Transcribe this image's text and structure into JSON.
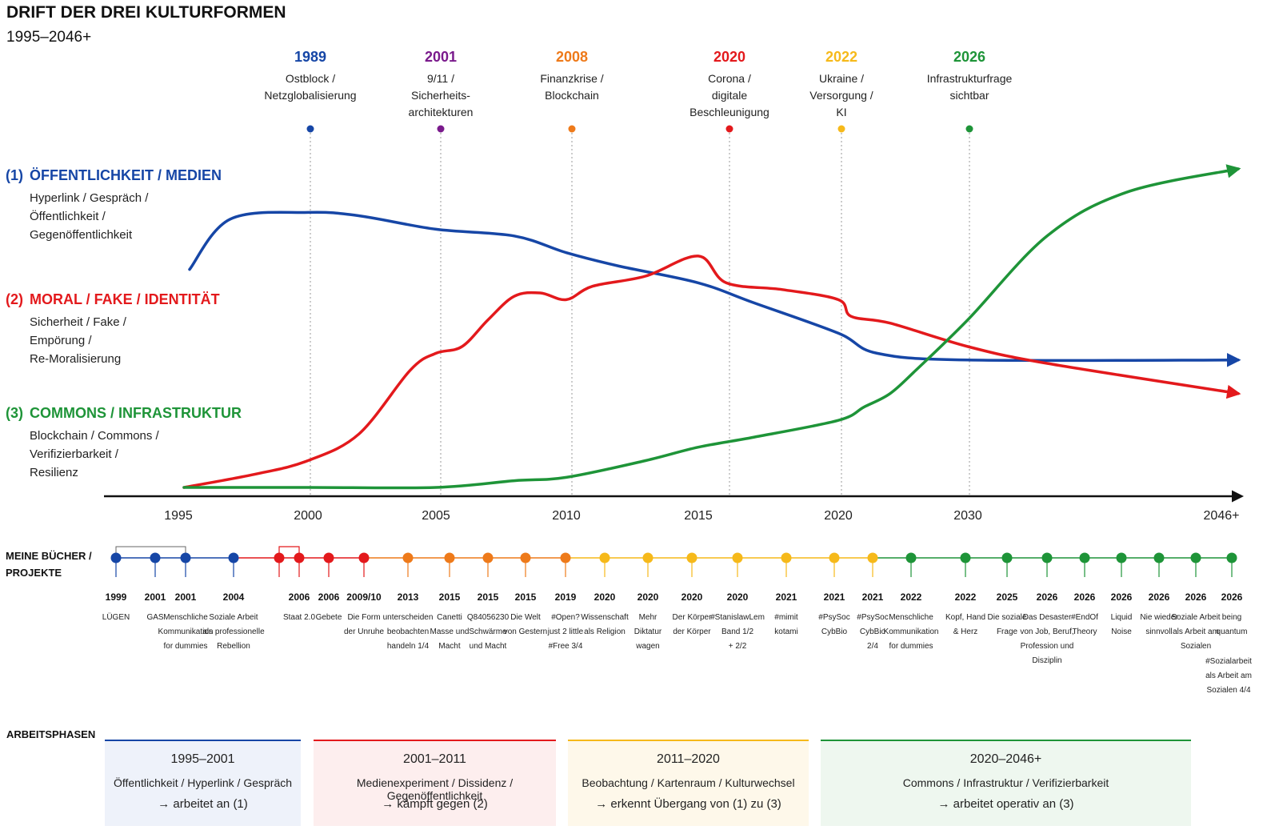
{
  "title": "DRIFT DER DREI KULTURFORMEN",
  "subtitle": "1995–2046+",
  "colors": {
    "blue": "#1646a6",
    "purple": "#7a1a8c",
    "orange": "#ee7a1a",
    "red": "#e3191c",
    "yellow": "#f6b91a",
    "green": "#1e9438",
    "axis": "#111111"
  },
  "events": [
    {
      "year": "1989",
      "label": [
        "Ostblock /",
        "Netzglobalisierung"
      ],
      "color": "blue"
    },
    {
      "year": "2001",
      "label": [
        "9/11 /",
        "Sicherheits-",
        "architekturen"
      ],
      "color": "purple"
    },
    {
      "year": "2008",
      "label": [
        "Finanzkrise /",
        "Blockchain"
      ],
      "color": "orange"
    },
    {
      "year": "2020",
      "label": [
        "Corona /",
        "digitale",
        "Beschleunigung"
      ],
      "color": "red"
    },
    {
      "year": "2022",
      "label": [
        "Ukraine /",
        "Versorgung /",
        "KI"
      ],
      "color": "yellow"
    },
    {
      "year": "2026",
      "label": [
        "Infrastrukturfrage",
        "sichtbar"
      ],
      "color": "green"
    }
  ],
  "categories": [
    {
      "num": "(1)",
      "title": "ÖFFENTLICHKEIT / MEDIEN",
      "lines": [
        "Hyperlink / Gespräch /",
        "Öffentlichkeit /",
        "Gegenöffentlichkeit"
      ],
      "color": "blue"
    },
    {
      "num": "(2)",
      "title": "MORAL / FAKE / IDENTITÄT",
      "lines": [
        "Sicherheit / Fake /",
        "Empörung /",
        "Re-Moralisierung"
      ],
      "color": "red"
    },
    {
      "num": "(3)",
      "title": "COMMONS / INFRASTRUKTUR",
      "lines": [
        "Blockchain / Commons /",
        "Verifizierbarkeit /",
        "Resilienz"
      ],
      "color": "green"
    }
  ],
  "chart_data": {
    "type": "line",
    "x_ticks": [
      "1995",
      "2000",
      "2005",
      "2010",
      "2015",
      "2020",
      "2030",
      "2046+"
    ],
    "series": [
      {
        "name": "ÖFFENTLICHKEIT / MEDIEN",
        "color": "blue",
        "x": [
          1995,
          1997,
          2000,
          2002,
          2005,
          2008,
          2010,
          2012,
          2015,
          2017,
          2020,
          2023,
          2030,
          2046
        ],
        "y": [
          65,
          80,
          82,
          81,
          77,
          75,
          70,
          66,
          61,
          55,
          46,
          40,
          38,
          38
        ]
      },
      {
        "name": "MORAL / FAKE / IDENTITÄT",
        "color": "red",
        "x": [
          1995,
          1998,
          2000,
          2002,
          2004,
          2005,
          2006,
          2007,
          2008,
          2009,
          2010,
          2011,
          2013,
          2015,
          2016,
          2018,
          2020,
          2021,
          2024,
          2030,
          2035,
          2046
        ],
        "y": [
          0,
          4,
          8,
          16,
          35,
          40,
          42,
          50,
          57,
          58,
          56,
          60,
          63,
          69,
          61,
          59,
          56,
          51,
          49,
          42,
          37,
          28
        ]
      },
      {
        "name": "COMMONS / INFRASTRUKTUR",
        "color": "green",
        "x": [
          1995,
          2000,
          2005,
          2008,
          2010,
          2013,
          2015,
          2017,
          2020,
          2022,
          2024,
          2026,
          2030,
          2035,
          2040,
          2046
        ],
        "y": [
          0,
          0,
          0,
          2,
          3,
          8,
          12,
          15,
          20,
          24,
          28,
          35,
          50,
          75,
          88,
          95
        ]
      }
    ]
  },
  "books": {
    "label": [
      "MEINE BÜCHER /",
      "PROJEKTE"
    ],
    "items": [
      {
        "year": "1999",
        "title": [
          "LÜGEN"
        ],
        "color": "blue"
      },
      {
        "year": "2001",
        "title": [
          "GAS"
        ],
        "color": "blue"
      },
      {
        "year": "2001",
        "title": [
          "Menschliche",
          "Kommunikation",
          "for dummies"
        ],
        "color": "blue"
      },
      {
        "year": "2004",
        "title": [
          "Soziale Arbeit",
          "als professionelle",
          "Rebellion"
        ],
        "color": "blue"
      },
      {
        "year": "",
        "title": [],
        "color": "red"
      },
      {
        "year": "2006",
        "title": [
          "Staat 2.0"
        ],
        "color": "red"
      },
      {
        "year": "2006",
        "title": [
          "Gebete"
        ],
        "color": "red"
      },
      {
        "year": "2009/10",
        "title": [
          "Die Form",
          "der Unruhe"
        ],
        "color": "red"
      },
      {
        "year": "2013",
        "title": [
          "unterscheiden",
          "beobachten",
          "handeln 1/4"
        ],
        "color": "orange"
      },
      {
        "year": "2015",
        "title": [
          "Canetti",
          "Masse und",
          "Macht"
        ],
        "color": "orange"
      },
      {
        "year": "2015",
        "title": [
          "Q84056230",
          "Schwärme",
          "und Macht"
        ],
        "color": "orange"
      },
      {
        "year": "2015",
        "title": [
          "Die Welt",
          "von Gestern"
        ],
        "color": "orange"
      },
      {
        "year": "2019",
        "title": [
          "#Open?",
          "just 2 little",
          "#Free 3/4"
        ],
        "color": "orange"
      },
      {
        "year": "2020",
        "title": [
          "Wissenschaft",
          "als Religion"
        ],
        "color": "yellow"
      },
      {
        "year": "2020",
        "title": [
          "Mehr",
          "Diktatur",
          "wagen"
        ],
        "color": "yellow"
      },
      {
        "year": "2020",
        "title": [
          "Der Körper",
          "der Körper"
        ],
        "color": "yellow"
      },
      {
        "year": "2020",
        "title": [
          "#StanislawLem",
          "Band 1/2",
          "+ 2/2"
        ],
        "color": "yellow"
      },
      {
        "year": "2021",
        "title": [
          "#mimit",
          "kotami"
        ],
        "color": "yellow"
      },
      {
        "year": "2021",
        "title": [
          "#PsySoc",
          "CybBio"
        ],
        "color": "yellow"
      },
      {
        "year": "2021",
        "title": [
          "#PsySoc",
          "CybBio",
          "2/4"
        ],
        "color": "yellow"
      },
      {
        "year": "2022",
        "title": [
          "Menschliche",
          "Kommunikation",
          "for dummies"
        ],
        "color": "green"
      },
      {
        "year": "2022",
        "title": [
          "Kopf, Hand",
          "& Herz"
        ],
        "color": "green"
      },
      {
        "year": "2025",
        "title": [
          "Die soziale",
          "Frage"
        ],
        "color": "green"
      },
      {
        "year": "2026",
        "title": [
          "Das Desaster",
          "von Job, Beruf,",
          "Profession und",
          "Disziplin"
        ],
        "color": "green"
      },
      {
        "year": "2026",
        "title": [
          "#EndOf",
          "Theory"
        ],
        "color": "green"
      },
      {
        "year": "2026",
        "title": [
          "Liquid",
          "Noise"
        ],
        "color": "green"
      },
      {
        "year": "2026",
        "title": [
          "Nie wieder",
          "sinnvoll"
        ],
        "color": "green"
      },
      {
        "year": "2026",
        "title": [
          "Soziale Arbeit",
          "als Arbeit am",
          "Sozialen"
        ],
        "color": "green"
      },
      {
        "year": "2026",
        "title": [
          "being",
          "quantum"
        ],
        "color": "green"
      }
    ],
    "extra_note": [
      "#Sozialarbeit",
      "als Arbeit am",
      "Sozialen 4/4"
    ]
  },
  "phases": {
    "label": "ARBEITSPHASEN",
    "items": [
      {
        "title": "1995–2001",
        "line1": "Öffentlichkeit / Hyperlink / Gespräch",
        "line2": "→ arbeitet an (1)",
        "color": "#1646a6",
        "bg": "#eef2fa"
      },
      {
        "title": "2001–2011",
        "line1": "Medienexperiment / Dissidenz / Gegenöffentlichkeit",
        "line2": "→ kämpft gegen (2)",
        "color": "#e3191c",
        "bg": "#fdeeee"
      },
      {
        "title": "2011–2020",
        "line1": "Beobachtung / Kartenraum / Kulturwechsel",
        "line2": "→ erkennt Übergang von (1) zu (3)",
        "color": "#f6b91a",
        "bg": "#fef8ea"
      },
      {
        "title": "2020–2046+",
        "line1": "Commons / Infrastruktur / Verifizierbarkeit",
        "line2": "→ arbeitet operativ an (3)",
        "color": "#1e9438",
        "bg": "#eef7ef"
      }
    ]
  }
}
